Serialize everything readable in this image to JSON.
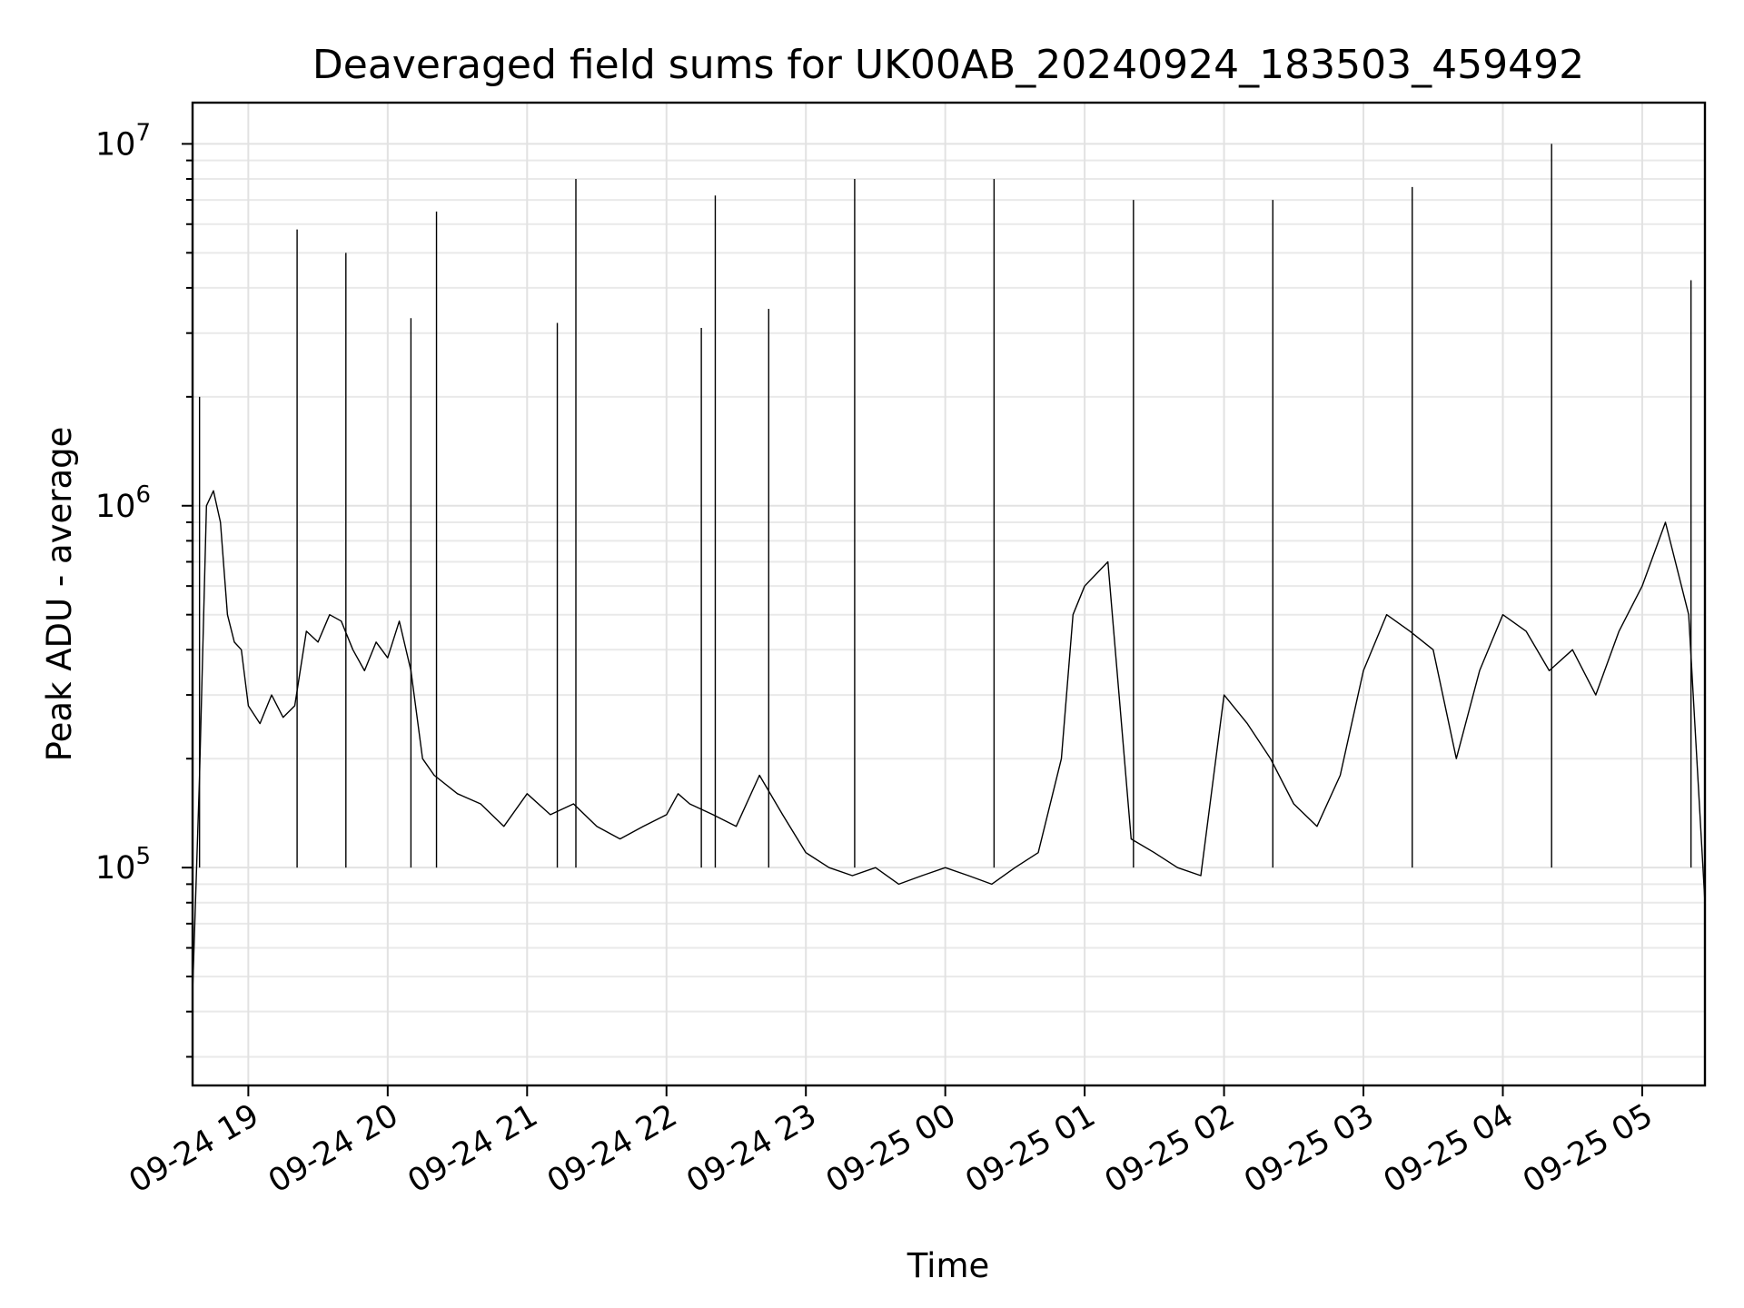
{
  "chart_data": {
    "type": "line",
    "title": "Deaveraged field sums for UK00AB_20240924_183503_459492",
    "xlabel": "Time",
    "ylabel": "Peak ADU - average",
    "yscale": "log",
    "grid": true,
    "line_color": "#000000",
    "grid_color": "#e2e2e2",
    "xlim": [
      "2024-09-24 18:36",
      "2024-09-25 05:27"
    ],
    "ylim": [
      25000,
      13000000
    ],
    "x_ticks": [
      {
        "value": "2024-09-24 19:00",
        "label": "09-24 19"
      },
      {
        "value": "2024-09-24 20:00",
        "label": "09-24 20"
      },
      {
        "value": "2024-09-24 21:00",
        "label": "09-24 21"
      },
      {
        "value": "2024-09-24 22:00",
        "label": "09-24 22"
      },
      {
        "value": "2024-09-24 23:00",
        "label": "09-24 23"
      },
      {
        "value": "2024-09-25 00:00",
        "label": "09-25 00"
      },
      {
        "value": "2024-09-25 01:00",
        "label": "09-25 01"
      },
      {
        "value": "2024-09-25 02:00",
        "label": "09-25 02"
      },
      {
        "value": "2024-09-25 03:00",
        "label": "09-25 03"
      },
      {
        "value": "2024-09-25 04:00",
        "label": "09-25 04"
      },
      {
        "value": "2024-09-25 05:00",
        "label": "09-25 05"
      }
    ],
    "y_ticks": [
      {
        "value": 100000,
        "base": "10",
        "exp": "5"
      },
      {
        "value": 1000000,
        "base": "10",
        "exp": "6"
      },
      {
        "value": 10000000,
        "base": "10",
        "exp": "7"
      }
    ],
    "series": [
      {
        "x": [
          "2024-09-24 18:36",
          "2024-09-24 18:39",
          "2024-09-24 18:42",
          "2024-09-24 18:45",
          "2024-09-24 18:48",
          "2024-09-24 18:51",
          "2024-09-24 18:54",
          "2024-09-24 18:57",
          "2024-09-24 19:00",
          "2024-09-24 19:05",
          "2024-09-24 19:10",
          "2024-09-24 19:15",
          "2024-09-24 19:20",
          "2024-09-24 19:25",
          "2024-09-24 19:30",
          "2024-09-24 19:35",
          "2024-09-24 19:40",
          "2024-09-24 19:45",
          "2024-09-24 19:50",
          "2024-09-24 19:55",
          "2024-09-24 20:00",
          "2024-09-24 20:05",
          "2024-09-24 20:10",
          "2024-09-24 20:15",
          "2024-09-24 20:20",
          "2024-09-24 20:30",
          "2024-09-24 20:40",
          "2024-09-24 20:50",
          "2024-09-24 21:00",
          "2024-09-24 21:10",
          "2024-09-24 21:20",
          "2024-09-24 21:30",
          "2024-09-24 21:40",
          "2024-09-24 21:50",
          "2024-09-24 22:00",
          "2024-09-24 22:05",
          "2024-09-24 22:10",
          "2024-09-24 22:20",
          "2024-09-24 22:30",
          "2024-09-24 22:40",
          "2024-09-24 22:50",
          "2024-09-24 23:00",
          "2024-09-24 23:10",
          "2024-09-24 23:20",
          "2024-09-24 23:30",
          "2024-09-24 23:40",
          "2024-09-24 23:50",
          "2024-09-25 00:00",
          "2024-09-25 00:10",
          "2024-09-25 00:20",
          "2024-09-25 00:30",
          "2024-09-25 00:40",
          "2024-09-25 00:50",
          "2024-09-25 00:55",
          "2024-09-25 01:00",
          "2024-09-25 01:10",
          "2024-09-25 01:20",
          "2024-09-25 01:30",
          "2024-09-25 01:40",
          "2024-09-25 01:50",
          "2024-09-25 02:00",
          "2024-09-25 02:10",
          "2024-09-25 02:20",
          "2024-09-25 02:30",
          "2024-09-25 02:40",
          "2024-09-25 02:50",
          "2024-09-25 03:00",
          "2024-09-25 03:10",
          "2024-09-25 03:20",
          "2024-09-25 03:30",
          "2024-09-25 03:40",
          "2024-09-25 03:50",
          "2024-09-25 04:00",
          "2024-09-25 04:10",
          "2024-09-25 04:20",
          "2024-09-25 04:30",
          "2024-09-25 04:40",
          "2024-09-25 04:50",
          "2024-09-25 05:00",
          "2024-09-25 05:10",
          "2024-09-25 05:20",
          "2024-09-25 05:27"
        ],
        "y": [
          45000,
          180000,
          1000000,
          1100000,
          900000,
          500000,
          420000,
          400000,
          280000,
          250000,
          300000,
          260000,
          280000,
          450000,
          420000,
          500000,
          480000,
          400000,
          350000,
          420000,
          380000,
          480000,
          350000,
          200000,
          180000,
          160000,
          150000,
          130000,
          160000,
          140000,
          150000,
          130000,
          120000,
          130000,
          140000,
          160000,
          150000,
          140000,
          130000,
          180000,
          140000,
          110000,
          100000,
          95000,
          100000,
          90000,
          95000,
          100000,
          95000,
          90000,
          100000,
          110000,
          200000,
          500000,
          600000,
          700000,
          120000,
          110000,
          100000,
          95000,
          300000,
          250000,
          200000,
          150000,
          130000,
          180000,
          350000,
          500000,
          450000,
          400000,
          200000,
          350000,
          500000,
          450000,
          350000,
          400000,
          300000,
          450000,
          600000,
          900000,
          500000,
          80000
        ]
      }
    ],
    "spikes": [
      {
        "x": "2024-09-24 18:39",
        "y": 2000000
      },
      {
        "x": "2024-09-24 19:21",
        "y": 5800000
      },
      {
        "x": "2024-09-24 19:42",
        "y": 5000000
      },
      {
        "x": "2024-09-24 20:21",
        "y": 6500000
      },
      {
        "x": "2024-09-24 20:10",
        "y": 3300000
      },
      {
        "x": "2024-09-24 21:13",
        "y": 3200000
      },
      {
        "x": "2024-09-24 21:21",
        "y": 8000000
      },
      {
        "x": "2024-09-24 22:15",
        "y": 3100000
      },
      {
        "x": "2024-09-24 22:21",
        "y": 7200000
      },
      {
        "x": "2024-09-24 22:44",
        "y": 3500000
      },
      {
        "x": "2024-09-24 23:21",
        "y": 8000000
      },
      {
        "x": "2024-09-25 00:21",
        "y": 8000000
      },
      {
        "x": "2024-09-25 01:21",
        "y": 7000000
      },
      {
        "x": "2024-09-25 02:21",
        "y": 7000000
      },
      {
        "x": "2024-09-25 03:21",
        "y": 7600000
      },
      {
        "x": "2024-09-25 04:21",
        "y": 10000000
      },
      {
        "x": "2024-09-25 05:21",
        "y": 4200000
      }
    ]
  }
}
